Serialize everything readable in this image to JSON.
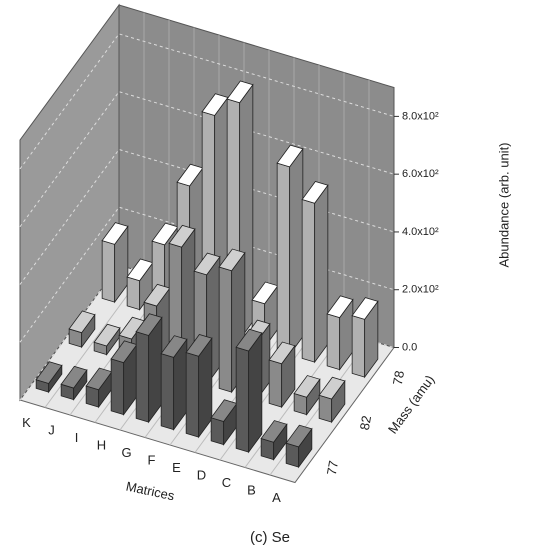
{
  "chart_data": {
    "type": "bar3d",
    "x_label": "Matrices",
    "y_label": "Abundance (arb. unit)",
    "z_label": "Mass (amu)",
    "caption": "(c) Se",
    "categories": [
      "K",
      "J",
      "I",
      "H",
      "G",
      "F",
      "E",
      "D",
      "C",
      "B",
      "A"
    ],
    "series": [
      {
        "name": "77",
        "color": "#5a5a5a",
        "values": [
          30,
          40,
          60,
          180,
          300,
          250,
          280,
          80,
          350,
          60,
          70
        ]
      },
      {
        "name": "82",
        "color": "#8a8a8a",
        "values": [
          50,
          30,
          80,
          220,
          450,
          380,
          420,
          200,
          150,
          60,
          80
        ]
      },
      {
        "name": "78",
        "color": "#b0b0b0",
        "values": [
          200,
          100,
          250,
          480,
          750,
          820,
          150,
          650,
          550,
          180,
          200
        ]
      }
    ],
    "ylim": [
      0,
      900
    ],
    "yticks": [
      {
        "value": 0,
        "label": "0.0"
      },
      {
        "value": 200,
        "label": "2.0x10²"
      },
      {
        "value": 400,
        "label": "4.0x10²"
      },
      {
        "value": 600,
        "label": "6.0x10²"
      },
      {
        "value": 800,
        "label": "8.0x10²"
      }
    ],
    "grid": true
  }
}
